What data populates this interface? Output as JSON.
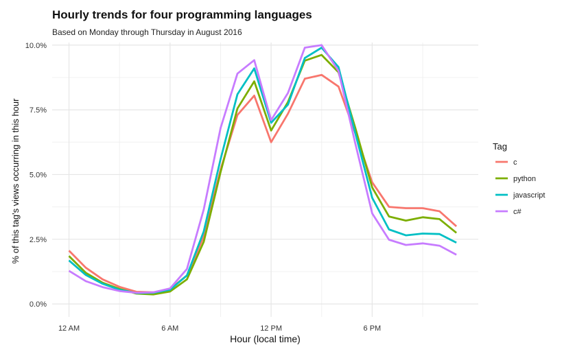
{
  "chart_data": {
    "type": "line",
    "title": "Hourly trends for four programming languages",
    "subtitle": "Based on Monday through Thursday in August 2016",
    "xlabel": "Hour (local time)",
    "ylabel": "% of this tag's views occurring in this hour",
    "xlim": [
      -1,
      24.3
    ],
    "ylim": [
      -0.005,
      0.101
    ],
    "x_ticks": [
      0,
      6,
      12,
      18
    ],
    "x_tick_labels": [
      "12 AM",
      "6 AM",
      "12 PM",
      "6 PM"
    ],
    "y_ticks": [
      0,
      0.025,
      0.05,
      0.075,
      0.1
    ],
    "y_tick_labels": [
      "0.0%",
      "2.5%",
      "5.0%",
      "7.5%",
      "10.0%"
    ],
    "grid": true,
    "legend_title": "Tag",
    "legend_position": "right",
    "x": [
      0,
      1,
      2,
      3,
      4,
      5,
      6,
      7,
      8,
      9,
      10,
      11,
      12,
      13,
      14,
      15,
      16,
      17,
      18,
      19,
      20,
      21,
      22,
      23
    ],
    "series": [
      {
        "name": "c",
        "color": "#F8766D",
        "values": [
          0.0206,
          0.014,
          0.0095,
          0.0066,
          0.0047,
          0.0045,
          0.0058,
          0.011,
          0.026,
          0.052,
          0.073,
          0.0805,
          0.0625,
          0.0735,
          0.087,
          0.0885,
          0.084,
          0.066,
          0.047,
          0.0375,
          0.037,
          0.037,
          0.0358,
          0.03
        ]
      },
      {
        "name": "python",
        "color": "#7CAE00",
        "values": [
          0.0185,
          0.012,
          0.0082,
          0.0058,
          0.004,
          0.0037,
          0.0048,
          0.0095,
          0.024,
          0.051,
          0.0755,
          0.086,
          0.067,
          0.078,
          0.094,
          0.0962,
          0.0895,
          0.068,
          0.045,
          0.0338,
          0.0322,
          0.0335,
          0.0328,
          0.0275
        ]
      },
      {
        "name": "javascript",
        "color": "#00BFC4",
        "values": [
          0.0168,
          0.0112,
          0.0078,
          0.0055,
          0.0042,
          0.0043,
          0.0055,
          0.011,
          0.028,
          0.056,
          0.081,
          0.091,
          0.07,
          0.077,
          0.095,
          0.099,
          0.0915,
          0.066,
          0.041,
          0.0288,
          0.0265,
          0.0272,
          0.027,
          0.0237
        ]
      },
      {
        "name": "c#",
        "color": "#C77CFF",
        "values": [
          0.0128,
          0.0088,
          0.0065,
          0.005,
          0.0043,
          0.0045,
          0.006,
          0.0135,
          0.0365,
          0.068,
          0.089,
          0.0942,
          0.071,
          0.0815,
          0.099,
          0.1,
          0.09,
          0.062,
          0.035,
          0.0248,
          0.0228,
          0.0234,
          0.0225,
          0.019
        ]
      }
    ]
  }
}
